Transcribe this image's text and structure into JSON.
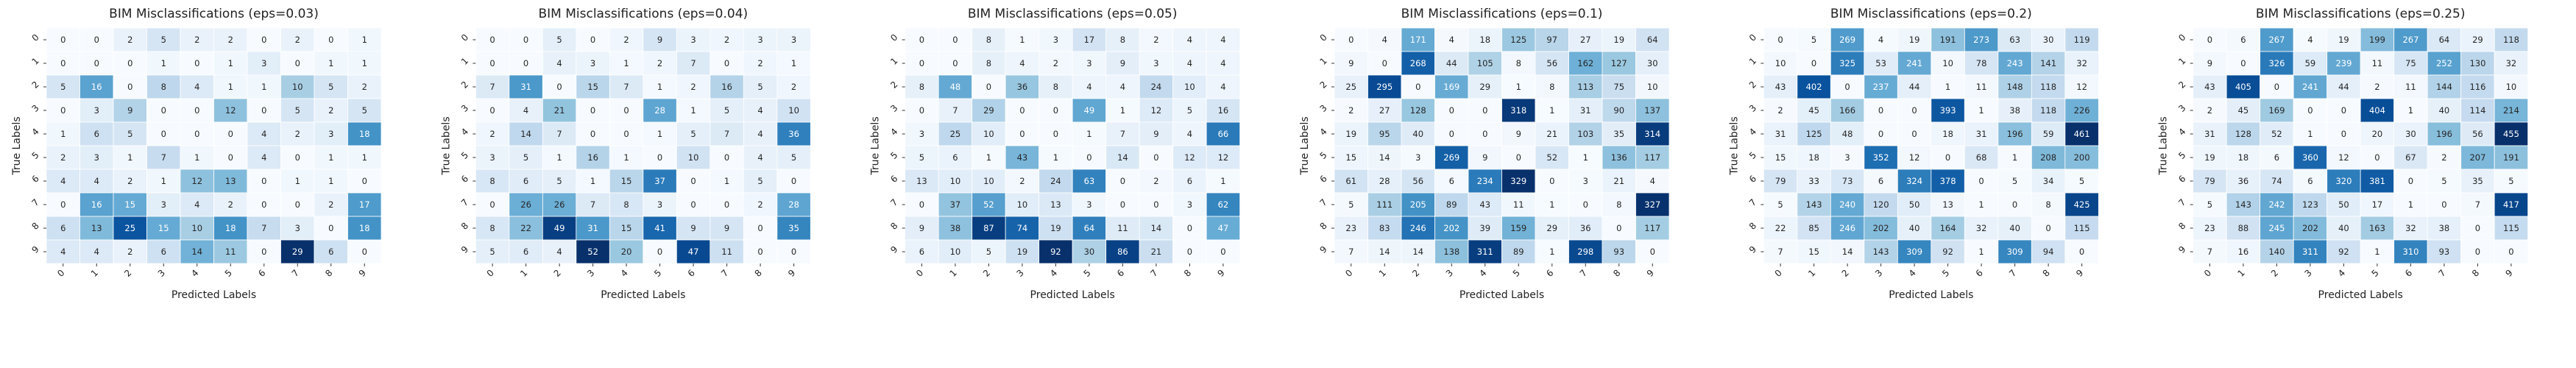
{
  "colors": {
    "low": "#f7fbff",
    "high": "#08306b",
    "grid": "#ffffff",
    "light_text": "#ffffff",
    "dark_text": "#262626"
  },
  "tick_labels": [
    "0",
    "1",
    "2",
    "3",
    "4",
    "5",
    "6",
    "7",
    "8",
    "9"
  ],
  "chart_data": [
    {
      "type": "heatmap",
      "title": "BIM Misclassifications (eps=0.03)",
      "xlabel": "Predicted Labels",
      "ylabel": "True Labels",
      "categories": [
        "0",
        "1",
        "2",
        "3",
        "4",
        "5",
        "6",
        "7",
        "8",
        "9"
      ],
      "values": [
        [
          0,
          0,
          2,
          5,
          2,
          2,
          0,
          2,
          0,
          1
        ],
        [
          0,
          0,
          0,
          1,
          0,
          1,
          3,
          0,
          1,
          1
        ],
        [
          5,
          16,
          0,
          8,
          4,
          1,
          1,
          10,
          5,
          2
        ],
        [
          0,
          3,
          9,
          0,
          0,
          12,
          0,
          5,
          2,
          5
        ],
        [
          1,
          6,
          5,
          0,
          0,
          0,
          4,
          2,
          3,
          18
        ],
        [
          2,
          3,
          1,
          7,
          1,
          0,
          4,
          0,
          1,
          1
        ],
        [
          4,
          4,
          2,
          1,
          12,
          13,
          0,
          1,
          1,
          0
        ],
        [
          0,
          16,
          15,
          3,
          4,
          2,
          0,
          0,
          2,
          17
        ],
        [
          6,
          13,
          25,
          15,
          10,
          18,
          7,
          3,
          0,
          18
        ],
        [
          4,
          4,
          2,
          6,
          14,
          11,
          0,
          29,
          6,
          0
        ]
      ]
    },
    {
      "type": "heatmap",
      "title": "BIM Misclassifications (eps=0.04)",
      "xlabel": "Predicted Labels",
      "ylabel": "True Labels",
      "categories": [
        "0",
        "1",
        "2",
        "3",
        "4",
        "5",
        "6",
        "7",
        "8",
        "9"
      ],
      "values": [
        [
          0,
          0,
          5,
          0,
          2,
          9,
          3,
          2,
          3,
          3
        ],
        [
          0,
          0,
          4,
          3,
          1,
          2,
          7,
          0,
          2,
          1
        ],
        [
          7,
          31,
          0,
          15,
          7,
          1,
          2,
          16,
          5,
          2
        ],
        [
          0,
          4,
          21,
          0,
          0,
          28,
          1,
          5,
          4,
          10
        ],
        [
          2,
          14,
          7,
          0,
          0,
          1,
          5,
          7,
          4,
          36
        ],
        [
          3,
          5,
          1,
          16,
          1,
          0,
          10,
          0,
          4,
          5
        ],
        [
          8,
          6,
          5,
          1,
          15,
          37,
          0,
          1,
          5,
          0
        ],
        [
          0,
          26,
          26,
          7,
          8,
          3,
          0,
          0,
          2,
          28
        ],
        [
          8,
          22,
          49,
          31,
          15,
          41,
          9,
          9,
          0,
          35
        ],
        [
          5,
          6,
          4,
          52,
          20,
          0,
          47,
          11,
          0,
          0
        ]
      ]
    },
    {
      "type": "heatmap",
      "title": "BIM Misclassifications (eps=0.05)",
      "xlabel": "Predicted Labels",
      "ylabel": "True Labels",
      "categories": [
        "0",
        "1",
        "2",
        "3",
        "4",
        "5",
        "6",
        "7",
        "8",
        "9"
      ],
      "values": [
        [
          0,
          0,
          8,
          1,
          3,
          17,
          8,
          2,
          4,
          4
        ],
        [
          0,
          0,
          8,
          4,
          2,
          3,
          9,
          3,
          4,
          4
        ],
        [
          8,
          48,
          0,
          36,
          8,
          4,
          4,
          24,
          10,
          4
        ],
        [
          0,
          7,
          29,
          0,
          0,
          49,
          1,
          12,
          5,
          16
        ],
        [
          3,
          25,
          10,
          0,
          0,
          1,
          7,
          9,
          4,
          66
        ],
        [
          5,
          6,
          1,
          43,
          1,
          0,
          14,
          0,
          12,
          12
        ],
        [
          13,
          10,
          10,
          2,
          24,
          63,
          0,
          2,
          6,
          1
        ],
        [
          0,
          37,
          52,
          10,
          13,
          3,
          0,
          0,
          3,
          62
        ],
        [
          9,
          38,
          87,
          74,
          19,
          64,
          11,
          14,
          0,
          47
        ],
        [
          6,
          10,
          5,
          19,
          92,
          30,
          86,
          21,
          0,
          0
        ]
      ]
    },
    {
      "type": "heatmap",
      "title": "BIM Misclassifications (eps=0.1)",
      "xlabel": "Predicted Labels",
      "ylabel": "True Labels",
      "categories": [
        "0",
        "1",
        "2",
        "3",
        "4",
        "5",
        "6",
        "7",
        "8",
        "9"
      ],
      "values": [
        [
          0,
          4,
          171,
          4,
          18,
          125,
          97,
          27,
          19,
          64
        ],
        [
          9,
          0,
          268,
          44,
          105,
          8,
          56,
          162,
          127,
          30
        ],
        [
          25,
          295,
          0,
          169,
          29,
          1,
          8,
          113,
          75,
          10
        ],
        [
          2,
          27,
          128,
          0,
          0,
          318,
          1,
          31,
          90,
          137
        ],
        [
          19,
          95,
          40,
          0,
          0,
          9,
          21,
          103,
          35,
          314
        ],
        [
          15,
          14,
          3,
          269,
          9,
          0,
          52,
          1,
          136,
          117
        ],
        [
          61,
          28,
          56,
          6,
          234,
          329,
          0,
          3,
          21,
          4
        ],
        [
          5,
          111,
          205,
          89,
          43,
          11,
          1,
          0,
          8,
          327
        ],
        [
          23,
          83,
          246,
          202,
          39,
          159,
          29,
          36,
          0,
          117
        ],
        [
          7,
          14,
          14,
          138,
          311,
          89,
          1,
          298,
          93,
          0
        ]
      ]
    },
    {
      "type": "heatmap",
      "title": "BIM Misclassifications (eps=0.2)",
      "xlabel": "Predicted Labels",
      "ylabel": "True Labels",
      "categories": [
        "0",
        "1",
        "2",
        "3",
        "4",
        "5",
        "6",
        "7",
        "8",
        "9"
      ],
      "values": [
        [
          0,
          5,
          269,
          4,
          19,
          191,
          273,
          63,
          30,
          119
        ],
        [
          10,
          0,
          325,
          53,
          241,
          10,
          78,
          243,
          141,
          32
        ],
        [
          43,
          402,
          0,
          237,
          44,
          1,
          11,
          148,
          118,
          12
        ],
        [
          2,
          45,
          166,
          0,
          0,
          393,
          1,
          38,
          118,
          226
        ],
        [
          31,
          125,
          48,
          0,
          0,
          18,
          31,
          196,
          59,
          461
        ],
        [
          15,
          18,
          3,
          352,
          12,
          0,
          68,
          1,
          208,
          200
        ],
        [
          79,
          33,
          73,
          6,
          324,
          378,
          0,
          5,
          34,
          5
        ],
        [
          5,
          143,
          240,
          120,
          50,
          13,
          1,
          0,
          8,
          425
        ],
        [
          22,
          85,
          246,
          202,
          40,
          164,
          32,
          40,
          0,
          115
        ],
        [
          7,
          15,
          14,
          143,
          309,
          92,
          1,
          309,
          94,
          0
        ]
      ]
    },
    {
      "type": "heatmap",
      "title": "BIM Misclassifications (eps=0.25)",
      "xlabel": "Predicted Labels",
      "ylabel": "True Labels",
      "categories": [
        "0",
        "1",
        "2",
        "3",
        "4",
        "5",
        "6",
        "7",
        "8",
        "9"
      ],
      "values": [
        [
          0,
          6,
          267,
          4,
          19,
          199,
          267,
          64,
          29,
          118
        ],
        [
          9,
          0,
          326,
          59,
          239,
          11,
          75,
          252,
          130,
          32
        ],
        [
          43,
          405,
          0,
          241,
          44,
          2,
          11,
          144,
          116,
          10
        ],
        [
          2,
          45,
          169,
          0,
          0,
          404,
          1,
          40,
          114,
          214
        ],
        [
          31,
          128,
          52,
          1,
          0,
          20,
          30,
          196,
          56,
          455
        ],
        [
          19,
          18,
          6,
          360,
          12,
          0,
          67,
          2,
          207,
          191
        ],
        [
          79,
          36,
          74,
          6,
          320,
          381,
          0,
          5,
          35,
          5
        ],
        [
          5,
          143,
          242,
          123,
          50,
          17,
          1,
          0,
          7,
          417
        ],
        [
          23,
          88,
          245,
          202,
          40,
          163,
          32,
          38,
          0,
          115
        ],
        [
          7,
          16,
          140,
          311,
          92,
          1,
          310,
          93,
          0,
          0
        ]
      ]
    }
  ]
}
